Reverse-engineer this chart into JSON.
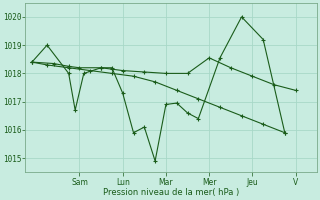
{
  "background_color": "#c8ece0",
  "grid_color": "#a8d8c8",
  "line_color": "#1a5c1a",
  "ylim": [
    1014.5,
    1020.5
  ],
  "yticks": [
    1015,
    1016,
    1017,
    1018,
    1019,
    1020
  ],
  "xlim": [
    0,
    13.5
  ],
  "xlabel": "Pression niveau de la mer( hPa )",
  "day_labels": [
    "Sam",
    "Lun",
    "Mar",
    "Mer",
    "Jeu",
    "V"
  ],
  "day_positions": [
    2.5,
    4.5,
    6.5,
    8.5,
    10.5,
    12.5
  ],
  "series1_x": [
    0.3,
    1.0,
    2.0,
    2.3,
    2.7,
    3.5,
    4.0,
    4.5,
    5.0,
    5.5,
    6.0,
    6.5,
    7.0,
    7.5,
    8.0,
    9.0,
    10.0,
    11.0,
    12.0
  ],
  "series1_y": [
    1018.4,
    1019.0,
    1018.0,
    1016.7,
    1018.0,
    1018.2,
    1018.2,
    1017.3,
    1015.9,
    1016.1,
    1014.9,
    1016.9,
    1016.95,
    1016.6,
    1016.4,
    1018.55,
    1020.0,
    1019.2,
    1015.9
  ],
  "series2_x": [
    0.3,
    1.3,
    2.0,
    2.5,
    3.5,
    4.0,
    4.5,
    5.5,
    6.5,
    7.5,
    8.5,
    9.5,
    10.5,
    11.5,
    12.5
  ],
  "series2_y": [
    1018.4,
    1018.35,
    1018.25,
    1018.2,
    1018.2,
    1018.15,
    1018.1,
    1018.05,
    1018.0,
    1018.0,
    1018.55,
    1018.2,
    1017.9,
    1017.6,
    1017.4
  ],
  "series3_x": [
    0.3,
    1.0,
    2.0,
    3.0,
    4.0,
    5.0,
    6.0,
    7.0,
    8.0,
    9.0,
    10.0,
    11.0,
    12.0
  ],
  "series3_y": [
    1018.4,
    1018.3,
    1018.2,
    1018.1,
    1018.0,
    1017.9,
    1017.7,
    1017.4,
    1017.1,
    1016.8,
    1016.5,
    1016.2,
    1015.9
  ]
}
